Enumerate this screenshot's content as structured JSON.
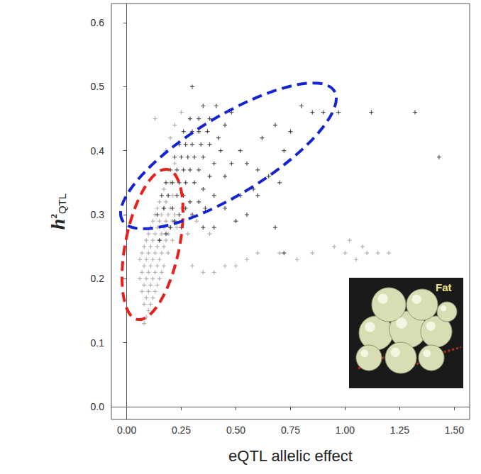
{
  "chart_data": {
    "type": "scatter",
    "x_label": "eQTL allelic effect",
    "y_label": "h²QTL",
    "annotations": [
      "Fat"
    ],
    "xlim": [
      -0.07,
      1.57
    ],
    "ylim": [
      -0.02,
      0.63
    ],
    "xticks": [
      {
        "value": 0,
        "label": "0.00"
      },
      {
        "value": 0.25,
        "label": "0.25"
      },
      {
        "value": 0.5,
        "label": "0.50"
      },
      {
        "value": 0.75,
        "label": "0.75"
      },
      {
        "value": 1,
        "label": "1.00"
      },
      {
        "value": 1.25,
        "label": "1.25"
      },
      {
        "value": 1.5,
        "label": "1.50"
      }
    ],
    "yticks": [
      {
        "value": 0,
        "label": "0.0"
      },
      0.1,
      0.2,
      0.3,
      0.4,
      0.5,
      0.6
    ],
    "grid": false,
    "marker": "cross",
    "series": [
      {
        "color": "#a39d99",
        "x": [
          0.08,
          0.09,
          0.1,
          0.08,
          0.11,
          0.09,
          0.12,
          0.07,
          0.1,
          0.13,
          0.08,
          0.11,
          0.14,
          0.06,
          0.09,
          0.12,
          0.15,
          0.07,
          0.1,
          0.13,
          0.16,
          0.08,
          0.11,
          0.14,
          0.17,
          0.06,
          0.09,
          0.12,
          0.15,
          0.07,
          0.1,
          0.13,
          0.16,
          0.19,
          0.08,
          0.11,
          0.14,
          0.17,
          0.09,
          0.12,
          0.15,
          0.18,
          0.21,
          0.1,
          0.13,
          0.16,
          0.19,
          0.11,
          0.14,
          0.17,
          0.2,
          0.23,
          0.12,
          0.15,
          0.18,
          0.21,
          0.13,
          0.16,
          0.19,
          0.22,
          0.14,
          0.17,
          0.2,
          0.15,
          0.18,
          0.21,
          0.17,
          0.2,
          0.19,
          0.22,
          0.18,
          0.2,
          0.22,
          0.13,
          0.25,
          0.35,
          0.4,
          0.45,
          0.5,
          0.55,
          0.6,
          0.7,
          0.78,
          0.85,
          0.95,
          1.0,
          1.02,
          1.05,
          1.08,
          1.1,
          1.15,
          1.2,
          0.3,
          0.28,
          0.32,
          0.38,
          0.25
        ],
        "values": [
          0.13,
          0.14,
          0.15,
          0.16,
          0.16,
          0.17,
          0.17,
          0.18,
          0.18,
          0.18,
          0.19,
          0.19,
          0.19,
          0.2,
          0.2,
          0.2,
          0.2,
          0.21,
          0.21,
          0.21,
          0.21,
          0.22,
          0.22,
          0.22,
          0.22,
          0.23,
          0.23,
          0.23,
          0.23,
          0.24,
          0.24,
          0.24,
          0.24,
          0.24,
          0.25,
          0.25,
          0.25,
          0.25,
          0.26,
          0.26,
          0.26,
          0.26,
          0.26,
          0.27,
          0.27,
          0.27,
          0.27,
          0.28,
          0.28,
          0.28,
          0.28,
          0.28,
          0.29,
          0.29,
          0.29,
          0.29,
          0.3,
          0.3,
          0.3,
          0.3,
          0.31,
          0.31,
          0.31,
          0.32,
          0.32,
          0.33,
          0.34,
          0.35,
          0.37,
          0.38,
          0.4,
          0.42,
          0.44,
          0.45,
          0.46,
          0.21,
          0.21,
          0.22,
          0.22,
          0.23,
          0.24,
          0.24,
          0.23,
          0.24,
          0.25,
          0.24,
          0.26,
          0.23,
          0.25,
          0.24,
          0.24,
          0.24,
          0.22,
          0.27,
          0.29,
          0.27,
          0.31
        ]
      },
      {
        "color": "#222222",
        "x": [
          0.15,
          0.18,
          0.2,
          0.22,
          0.25,
          0.14,
          0.17,
          0.21,
          0.24,
          0.27,
          0.3,
          0.16,
          0.19,
          0.23,
          0.26,
          0.29,
          0.33,
          0.36,
          0.18,
          0.21,
          0.24,
          0.27,
          0.31,
          0.35,
          0.4,
          0.2,
          0.23,
          0.26,
          0.29,
          0.33,
          0.38,
          0.45,
          0.22,
          0.25,
          0.28,
          0.31,
          0.35,
          0.4,
          0.48,
          0.24,
          0.27,
          0.3,
          0.34,
          0.38,
          0.43,
          0.26,
          0.3,
          0.33,
          0.37,
          0.42,
          0.29,
          0.33,
          0.38,
          0.45,
          0.35,
          0.41,
          0.48,
          0.3,
          0.52,
          0.55,
          0.6,
          0.65,
          0.7,
          0.72,
          0.68,
          0.62,
          0.58,
          0.75,
          0.8,
          0.85,
          0.9,
          0.97,
          1.12,
          1.32,
          1.43,
          0.6,
          0.45,
          0.5,
          0.68,
          0.72,
          0.52,
          0.55,
          0.4,
          0.35
        ],
        "values": [
          0.26,
          0.27,
          0.28,
          0.29,
          0.28,
          0.3,
          0.31,
          0.31,
          0.3,
          0.31,
          0.3,
          0.33,
          0.33,
          0.33,
          0.33,
          0.32,
          0.32,
          0.31,
          0.35,
          0.35,
          0.35,
          0.35,
          0.35,
          0.34,
          0.33,
          0.37,
          0.37,
          0.37,
          0.37,
          0.37,
          0.36,
          0.36,
          0.39,
          0.39,
          0.39,
          0.39,
          0.39,
          0.38,
          0.38,
          0.41,
          0.41,
          0.41,
          0.41,
          0.41,
          0.4,
          0.43,
          0.43,
          0.43,
          0.43,
          0.42,
          0.45,
          0.45,
          0.45,
          0.44,
          0.47,
          0.47,
          0.46,
          0.5,
          0.4,
          0.38,
          0.37,
          0.36,
          0.35,
          0.4,
          0.44,
          0.42,
          0.34,
          0.43,
          0.47,
          0.46,
          0.46,
          0.46,
          0.46,
          0.46,
          0.39,
          0.33,
          0.31,
          0.29,
          0.28,
          0.24,
          0.33,
          0.3,
          0.28,
          0.28
        ]
      }
    ]
  }
}
